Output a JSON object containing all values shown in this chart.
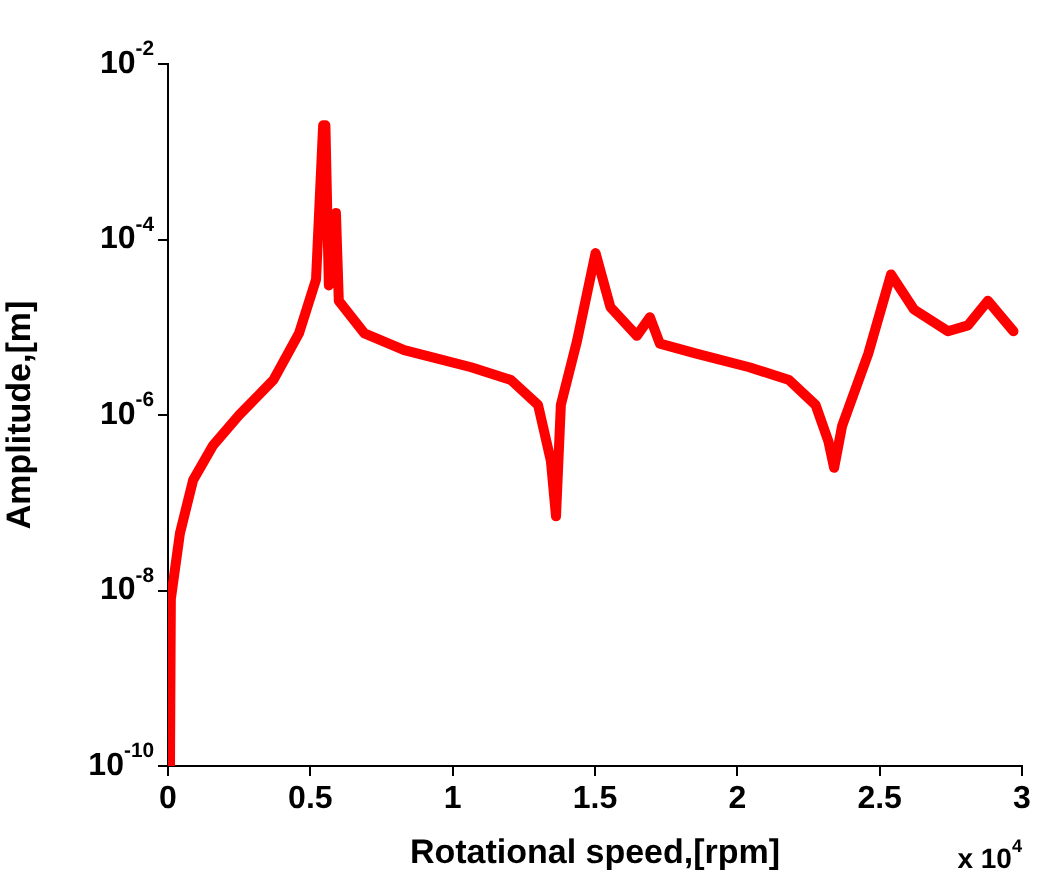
{
  "chart_data": {
    "type": "line",
    "xlabel": "Rotational speed,[rpm]",
    "ylabel": "Amplitude,[m]",
    "annotations": [
      "x 10$^{4}$"
    ],
    "x": [
      0.007,
      0.01,
      0.042,
      0.088,
      0.158,
      0.25,
      0.37,
      0.46,
      0.52,
      0.545,
      0.553,
      0.565,
      0.577,
      0.59,
      0.6,
      0.69,
      0.83,
      1.065,
      1.205,
      1.3,
      1.345,
      1.363,
      1.38,
      1.437,
      1.502,
      1.554,
      1.647,
      1.693,
      1.728,
      1.856,
      2.042,
      2.182,
      2.275,
      2.32,
      2.34,
      2.368,
      2.46,
      2.54,
      2.62,
      2.74,
      2.81,
      2.88,
      2.97
    ],
    "series": [
      {
        "color": "#ff0000",
        "values": [
          1e-10,
          8e-09,
          4.5e-08,
          1.8e-07,
          4.5e-07,
          1e-06,
          2.5e-06,
          8.5e-06,
          3.5e-05,
          0.002,
          0.002,
          3e-05,
          3.5e-05,
          0.0002,
          2e-05,
          8.5e-06,
          5.5e-06,
          3.5e-06,
          2.5e-06,
          1.3e-06,
          3e-07,
          7e-08,
          1.3e-06,
          7e-06,
          7e-05,
          1.7e-05,
          8e-06,
          1.3e-05,
          6.5e-06,
          5e-06,
          3.5e-06,
          2.5e-06,
          1.3e-06,
          5e-07,
          2.5e-07,
          7.5e-07,
          5e-06,
          4e-05,
          1.6e-05,
          9e-06,
          1.05e-05,
          2e-05,
          9e-06
        ]
      }
    ],
    "xlim": [
      0,
      3
    ],
    "xticks": [
      0,
      0.5,
      1,
      1.5,
      2,
      2.5,
      3
    ],
    "ylim": [
      1e-10,
      0.01
    ],
    "yticks": [
      {
        "value": 1e-10,
        "label": "10$^{-10}$"
      },
      {
        "value": 1e-08,
        "label": "10$^{-8}$"
      },
      {
        "value": 1e-06,
        "label": "10$^{-6}$"
      },
      {
        "value": 0.0001,
        "label": "10$^{-4}$"
      },
      {
        "value": 0.01,
        "label": "10$^{-2}$"
      }
    ],
    "log": "y",
    "grid": false,
    "legend": false,
    "marker": "none",
    "line_style": "solid"
  }
}
